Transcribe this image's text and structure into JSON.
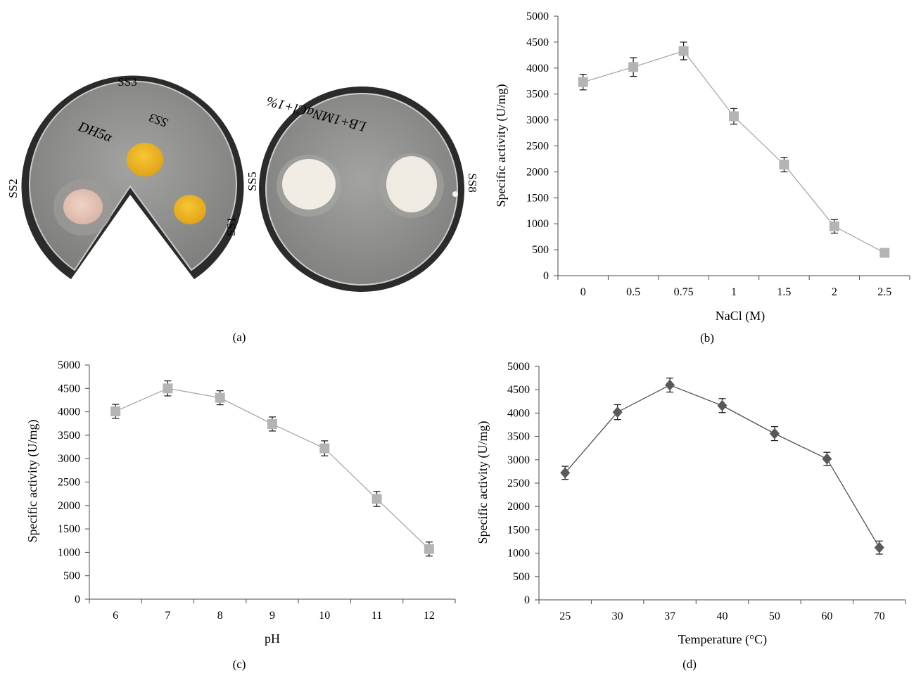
{
  "panel_a": {
    "label": "(a)",
    "plate_labels": [
      "SS3",
      "SS2",
      "SS1",
      "SS5",
      "SS8"
    ],
    "plate_colors": {
      "rim": "#2a2a2a",
      "agar": "#8f8f8d",
      "colony_yellow": "#f0b51f",
      "colony_pink": "#e8c7b8",
      "colony_white": "#f2eee6"
    }
  },
  "chart_data": [
    {
      "id": "b",
      "type": "line",
      "label": "(b)",
      "marker": "square",
      "color": "#b4b4b4",
      "line_color": "#a8a8a8",
      "categories": [
        "0",
        "0.5",
        "0.75",
        "1",
        "1.5",
        "2",
        "2.5"
      ],
      "values": [
        3730,
        4020,
        4330,
        3070,
        2140,
        950,
        440
      ],
      "errors": [
        150,
        180,
        170,
        150,
        140,
        130,
        80
      ],
      "xlabel": "NaCl (M)",
      "ylabel": "Specific activity (U/mg)",
      "ylim": [
        0,
        5000
      ],
      "yticks": [
        "0",
        "500",
        "1000",
        "1500",
        "2000",
        "2500",
        "3000",
        "3500",
        "4000",
        "4500",
        "5000"
      ]
    },
    {
      "id": "c",
      "type": "line",
      "label": "(c)",
      "marker": "square",
      "color": "#b4b4b4",
      "line_color": "#a8a8a8",
      "categories": [
        "6",
        "7",
        "8",
        "9",
        "10",
        "11",
        "12"
      ],
      "values": [
        4010,
        4500,
        4300,
        3740,
        3220,
        2140,
        1070
      ],
      "errors": [
        150,
        160,
        150,
        150,
        160,
        160,
        150
      ],
      "xlabel": "pH",
      "ylabel": "Specific activity (U/mg)",
      "ylim": [
        0,
        5000
      ],
      "yticks": [
        "0",
        "500",
        "1000",
        "1500",
        "2000",
        "2500",
        "3000",
        "3500",
        "4000",
        "4500",
        "5000"
      ]
    },
    {
      "id": "d",
      "type": "line",
      "label": "(d)",
      "marker": "diamond",
      "color": "#595959",
      "line_color": "#505050",
      "categories": [
        "25",
        "30",
        "37",
        "40",
        "50",
        "60",
        "70"
      ],
      "values": [
        2720,
        4020,
        4600,
        4160,
        3560,
        3020,
        1120
      ],
      "errors": [
        140,
        160,
        150,
        150,
        150,
        140,
        140
      ],
      "xlabel": "Temperature (°C)",
      "ylabel": "Specific activity (U/mg)",
      "ylim": [
        0,
        5000
      ],
      "yticks": [
        "0",
        "500",
        "1000",
        "1500",
        "2000",
        "2500",
        "3000",
        "3500",
        "4000",
        "4500",
        "5000"
      ]
    }
  ]
}
